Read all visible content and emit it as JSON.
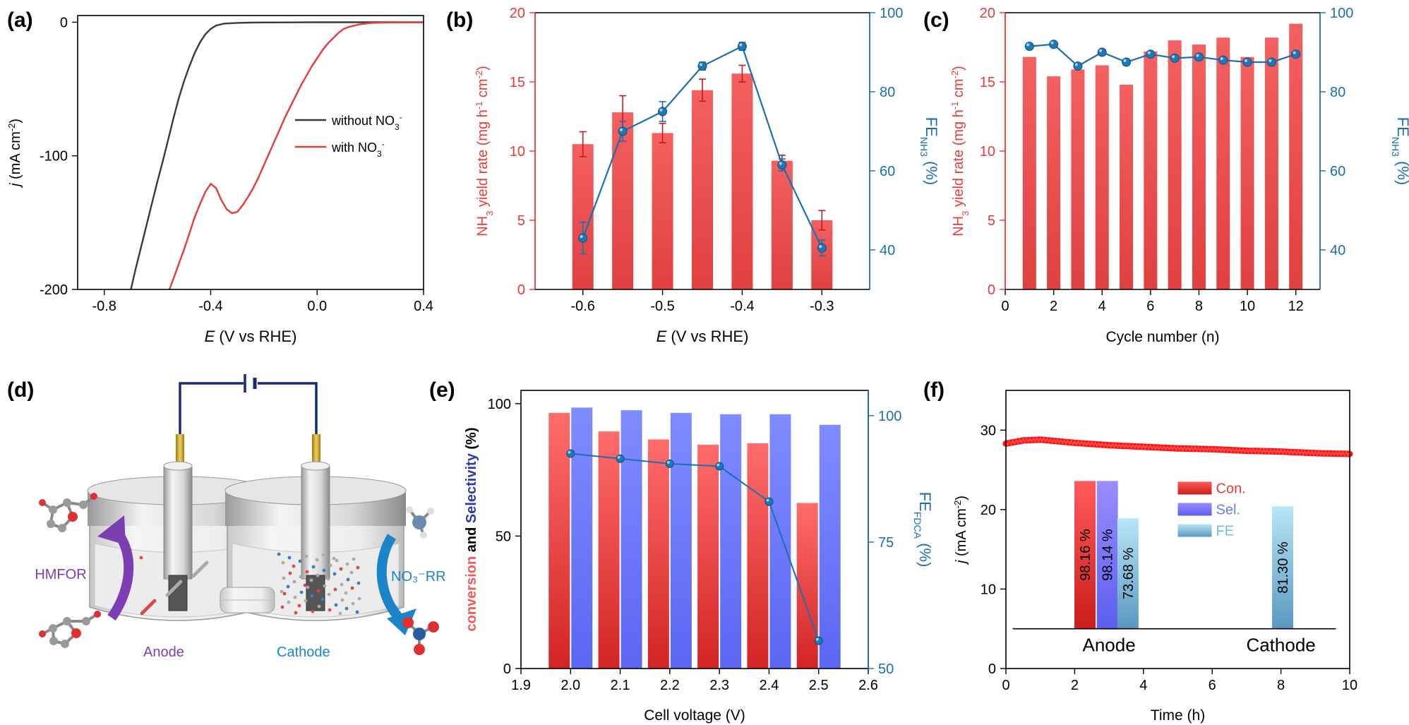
{
  "colors": {
    "red": "#e83a3a",
    "blue": "#1b6fae",
    "blueMarker": "#1f78b4",
    "selBlue": "#6b78ff",
    "feLight": "#9fd8f0",
    "dark": "#3a3a3a",
    "navy": "#1a2a6e"
  },
  "chart_data": [
    {
      "panel": "(a)",
      "type": "line",
      "xlabel_italic": "E",
      "xlabel": " (V vs RHE)",
      "ylabel_italic": "j",
      "ylabel": " (mA cm",
      "ylabel_sup": "-2",
      "ylabel_end": ")",
      "xlim": [
        -0.9,
        0.4
      ],
      "ylim": [
        -200,
        5
      ],
      "xticks": [
        -0.8,
        -0.4,
        0.0,
        0.4
      ],
      "xtick_labels": [
        "-0.8",
        "-0.4",
        "0.0",
        "0.4"
      ],
      "yticks": [
        0,
        -100,
        -200
      ],
      "ytick_labels": [
        "0",
        "-100",
        "-200"
      ],
      "series": [
        {
          "name": "without NO",
          "sub": "3",
          "sup": "-",
          "color": "#3a3a3a",
          "x": [
            -0.7,
            -0.68,
            -0.65,
            -0.62,
            -0.6,
            -0.58,
            -0.56,
            -0.54,
            -0.52,
            -0.5,
            -0.48,
            -0.46,
            -0.44,
            -0.42,
            -0.4,
            -0.38,
            -0.35,
            -0.3,
            -0.25,
            -0.2,
            -0.1,
            0.0,
            0.1,
            0.2,
            0.3,
            0.4
          ],
          "y": [
            -200,
            -183,
            -159,
            -135,
            -119,
            -104,
            -88,
            -72,
            -57,
            -44,
            -33,
            -23,
            -15,
            -9,
            -5,
            -2.5,
            -1,
            -0.5,
            -0.3,
            -0.2,
            -0.1,
            0,
            0,
            0,
            0,
            0
          ]
        },
        {
          "name": "with NO",
          "sub": "3",
          "sup": "-",
          "color": "#e83a3a",
          "x": [
            -0.555,
            -0.54,
            -0.52,
            -0.5,
            -0.48,
            -0.46,
            -0.44,
            -0.42,
            -0.4,
            -0.38,
            -0.36,
            -0.34,
            -0.32,
            -0.3,
            -0.28,
            -0.26,
            -0.24,
            -0.22,
            -0.2,
            -0.18,
            -0.16,
            -0.14,
            -0.12,
            -0.1,
            -0.08,
            -0.06,
            -0.04,
            -0.02,
            0.0,
            0.02,
            0.04,
            0.06,
            0.08,
            0.1,
            0.12,
            0.14,
            0.16,
            0.18,
            0.2,
            0.25,
            0.3,
            0.4
          ],
          "y": [
            -200,
            -192,
            -181,
            -170,
            -158,
            -146,
            -136,
            -127,
            -121,
            -124,
            -133,
            -140,
            -143,
            -142,
            -137,
            -131,
            -124,
            -116,
            -107,
            -98,
            -89,
            -80,
            -71,
            -63,
            -55,
            -47,
            -40,
            -33,
            -27,
            -21,
            -16,
            -12,
            -8,
            -5,
            -3.5,
            -2.5,
            -1.6,
            -1,
            -0.6,
            -0.3,
            -0.2,
            -0.1
          ]
        }
      ]
    },
    {
      "panel": "(b)",
      "type": "bar+line",
      "xlabel_italic": "E",
      "xlabel": " (V vs RHE)",
      "ylabel": "NH",
      "ylabel_sub": "3",
      "ylabel_mid": " yield rate (mg h",
      "ylabel_sup1": "-1",
      "ylabel_mid2": " cm",
      "ylabel_sup2": "-2",
      "ylabel_end": ")",
      "y2label": "FE",
      "y2label_sub": "NH3",
      "y2label_end": " (%)",
      "xlim": [
        -0.66,
        -0.24
      ],
      "ylim": [
        0,
        20
      ],
      "y2lim": [
        30,
        100
      ],
      "xticks": [
        -0.6,
        -0.5,
        -0.4,
        -0.3
      ],
      "xtick_labels": [
        "-0.6",
        "-0.5",
        "-0.4",
        "-0.3"
      ],
      "yticks": [
        0,
        5,
        10,
        15,
        20
      ],
      "y2ticks": [
        40,
        60,
        80,
        100
      ],
      "x": [
        -0.6,
        -0.55,
        -0.5,
        -0.45,
        -0.4,
        -0.35,
        -0.3
      ],
      "bar_values": [
        10.5,
        12.8,
        11.3,
        14.4,
        15.6,
        9.3,
        5.0
      ],
      "bar_errors": [
        0.9,
        1.2,
        0.7,
        0.8,
        0.6,
        0.4,
        0.7
      ],
      "fe_values": [
        43,
        70,
        75,
        86.5,
        91.5,
        61.5,
        40.5
      ],
      "fe_errors": [
        4,
        2.5,
        2.5,
        1,
        1,
        1.5,
        2
      ]
    },
    {
      "panel": "(c)",
      "type": "bar+line",
      "xlabel": "Cycle number (n)",
      "ylabel": "NH",
      "ylabel_sub": "3",
      "ylabel_mid": " yield rate (mg h",
      "ylabel_sup1": "-1",
      "ylabel_mid2": " cm",
      "ylabel_sup2": "-2",
      "ylabel_end": ")",
      "y2label": "FE",
      "y2label_sub": "NH3",
      "y2label_end": " (%)",
      "xlim": [
        0,
        13
      ],
      "ylim": [
        0,
        20
      ],
      "y2lim": [
        30,
        100
      ],
      "xticks": [
        0,
        2,
        4,
        6,
        8,
        10,
        12
      ],
      "yticks": [
        0,
        5,
        10,
        15,
        20
      ],
      "y2ticks": [
        40,
        60,
        80,
        100
      ],
      "x": [
        1,
        2,
        3,
        4,
        5,
        6,
        7,
        8,
        9,
        10,
        11,
        12
      ],
      "bar_values": [
        16.8,
        15.4,
        15.9,
        16.2,
        14.8,
        17.2,
        18.0,
        17.7,
        18.2,
        16.8,
        18.2,
        19.2
      ],
      "fe_values": [
        91.5,
        92.0,
        86.5,
        90.0,
        87.5,
        89.5,
        88.5,
        88.8,
        88.0,
        87.5,
        87.5,
        89.5
      ]
    },
    {
      "panel": "(e)",
      "type": "grouped-bar+line",
      "xlabel": "Cell voltage  (V)",
      "ylabel_parts": [
        "conversion",
        " and ",
        "Selectivity",
        " (%)"
      ],
      "y2label": "FE",
      "y2label_sub": "FDCA",
      "y2label_end": " (%)",
      "xlim": [
        1.9,
        2.6
      ],
      "ylim": [
        0,
        105
      ],
      "y2lim": [
        50,
        105
      ],
      "xticks": [
        1.9,
        2.0,
        2.1,
        2.2,
        2.3,
        2.4,
        2.5,
        2.6
      ],
      "xtick_labels": [
        "1.9",
        "2.0",
        "2.1",
        "2.2",
        "2.3",
        "2.4",
        "2.5",
        "2.6"
      ],
      "yticks": [
        0,
        50,
        100
      ],
      "y2ticks": [
        50,
        75,
        100
      ],
      "x": [
        2.0,
        2.1,
        2.2,
        2.3,
        2.4,
        2.5
      ],
      "conversion": [
        96.5,
        89.5,
        86.5,
        84.5,
        85.0,
        62.5
      ],
      "selectivity": [
        98.5,
        97.5,
        96.5,
        96.0,
        96.0,
        92.0
      ],
      "fe_fdca": [
        92.5,
        91.5,
        90.5,
        90.0,
        83.0,
        55.5
      ]
    },
    {
      "panel": "(f)",
      "type": "line+bar-inset",
      "xlabel": "Time (h)",
      "ylabel_italic": "j",
      "ylabel": " (mA cm",
      "ylabel_sup": "-2",
      "ylabel_end": ")",
      "xlim": [
        0,
        10
      ],
      "ylim": [
        0,
        35
      ],
      "xticks": [
        0,
        2,
        4,
        6,
        8,
        10
      ],
      "yticks": [
        0,
        10,
        20,
        30
      ],
      "current_x": [
        0,
        0.5,
        1,
        2,
        3,
        4,
        5,
        6,
        7,
        8,
        9,
        10
      ],
      "current_y": [
        28.3,
        28.7,
        28.8,
        28.4,
        28.1,
        27.9,
        27.7,
        27.6,
        27.4,
        27.3,
        27.1,
        27.0
      ],
      "inset": {
        "groups": [
          "Anode",
          "Cathode"
        ],
        "legend": [
          "Con.",
          "Sel.",
          "FE"
        ],
        "anode": [
          {
            "label": "98.16 %",
            "x": 2.3,
            "top": 23.6,
            "kind": "con"
          },
          {
            "label": "98.14 %",
            "x": 2.95,
            "top": 23.6,
            "kind": "sel"
          },
          {
            "label": "73.68 %",
            "x": 3.55,
            "top": 18.9,
            "kind": "fe"
          }
        ],
        "cathode": [
          {
            "label": "81.30 %",
            "x": 8.05,
            "top": 20.4,
            "kind": "fe"
          }
        ]
      }
    }
  ],
  "schematic_d": {
    "panel": "(d)",
    "hmfor": "HMFOR",
    "anode": "Anode",
    "cathode": "Cathode",
    "no3rr": "NO₃⁻RR"
  },
  "panel_b_label": "(b)",
  "panel_c_label": "(c)",
  "panel_e_label": "(e)",
  "panel_f_label": "(f)"
}
